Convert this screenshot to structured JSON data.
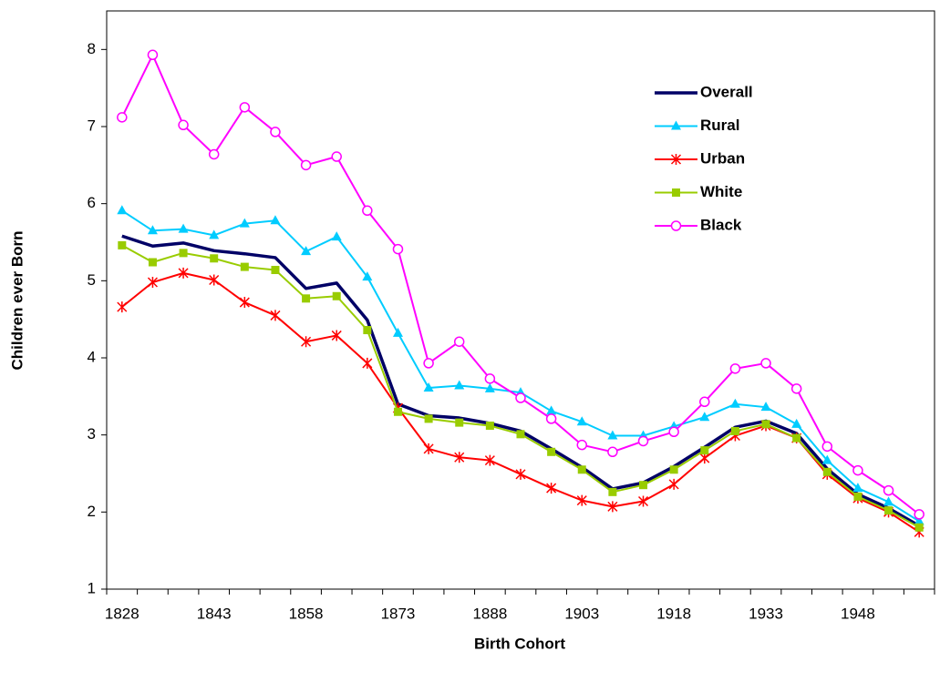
{
  "chart_data": {
    "type": "line",
    "x_label": "Birth Cohort",
    "y_label": "Children ever Born",
    "categories": [
      "1828",
      null,
      null,
      "1843",
      null,
      null,
      "1858",
      null,
      null,
      "1873",
      null,
      null,
      "1888",
      null,
      null,
      "1903",
      null,
      null,
      "1918",
      null,
      null,
      "1933",
      null,
      null,
      "1948",
      null,
      null
    ],
    "series": [
      {
        "name": "Overall",
        "color": "#000066",
        "marker": "none",
        "width": 3.5,
        "values": [
          5.58,
          5.45,
          5.49,
          5.39,
          5.35,
          5.3,
          4.9,
          4.97,
          4.49,
          3.4,
          3.25,
          3.22,
          3.15,
          3.05,
          2.82,
          2.58,
          2.3,
          2.38,
          2.59,
          2.84,
          3.1,
          3.18,
          3.02,
          2.56,
          2.23,
          2.05,
          1.82
        ]
      },
      {
        "name": "Rural",
        "color": "#00ccff",
        "marker": "triangle",
        "width": 2,
        "values": [
          5.91,
          5.65,
          5.67,
          5.59,
          5.74,
          5.78,
          5.38,
          5.57,
          5.05,
          4.32,
          3.61,
          3.64,
          3.6,
          3.55,
          3.31,
          3.17,
          2.99,
          2.99,
          3.11,
          3.23,
          3.4,
          3.36,
          3.14,
          2.67,
          2.31,
          2.13,
          1.88
        ]
      },
      {
        "name": "Urban",
        "color": "#ff0000",
        "marker": "asterisk",
        "width": 2,
        "values": [
          4.66,
          4.98,
          5.1,
          5.01,
          4.72,
          4.55,
          4.21,
          4.29,
          3.93,
          3.35,
          2.82,
          2.71,
          2.67,
          2.49,
          2.31,
          2.15,
          2.07,
          2.14,
          2.36,
          2.7,
          2.99,
          3.12,
          2.96,
          2.49,
          2.18,
          2.0,
          1.74
        ]
      },
      {
        "name": "White",
        "color": "#99cc00",
        "marker": "square",
        "width": 2,
        "values": [
          5.46,
          5.24,
          5.36,
          5.29,
          5.18,
          5.14,
          4.77,
          4.8,
          4.36,
          3.3,
          3.21,
          3.16,
          3.12,
          3.01,
          2.78,
          2.55,
          2.26,
          2.35,
          2.55,
          2.8,
          3.05,
          3.14,
          2.96,
          2.52,
          2.2,
          2.02,
          1.8
        ]
      },
      {
        "name": "Black",
        "color": "#ff00ff",
        "marker": "circle",
        "width": 2,
        "values": [
          7.12,
          7.93,
          7.02,
          6.64,
          7.25,
          6.93,
          6.5,
          6.61,
          5.91,
          5.41,
          3.93,
          4.21,
          3.73,
          3.48,
          3.21,
          2.87,
          2.78,
          2.92,
          3.04,
          3.43,
          3.86,
          3.93,
          3.6,
          2.85,
          2.54,
          2.28,
          1.97
        ]
      }
    ],
    "ylim": [
      1,
      8.5
    ],
    "yticks": [
      1,
      2,
      3,
      4,
      5,
      6,
      7,
      8
    ],
    "grid": false,
    "legend": "upper right"
  }
}
